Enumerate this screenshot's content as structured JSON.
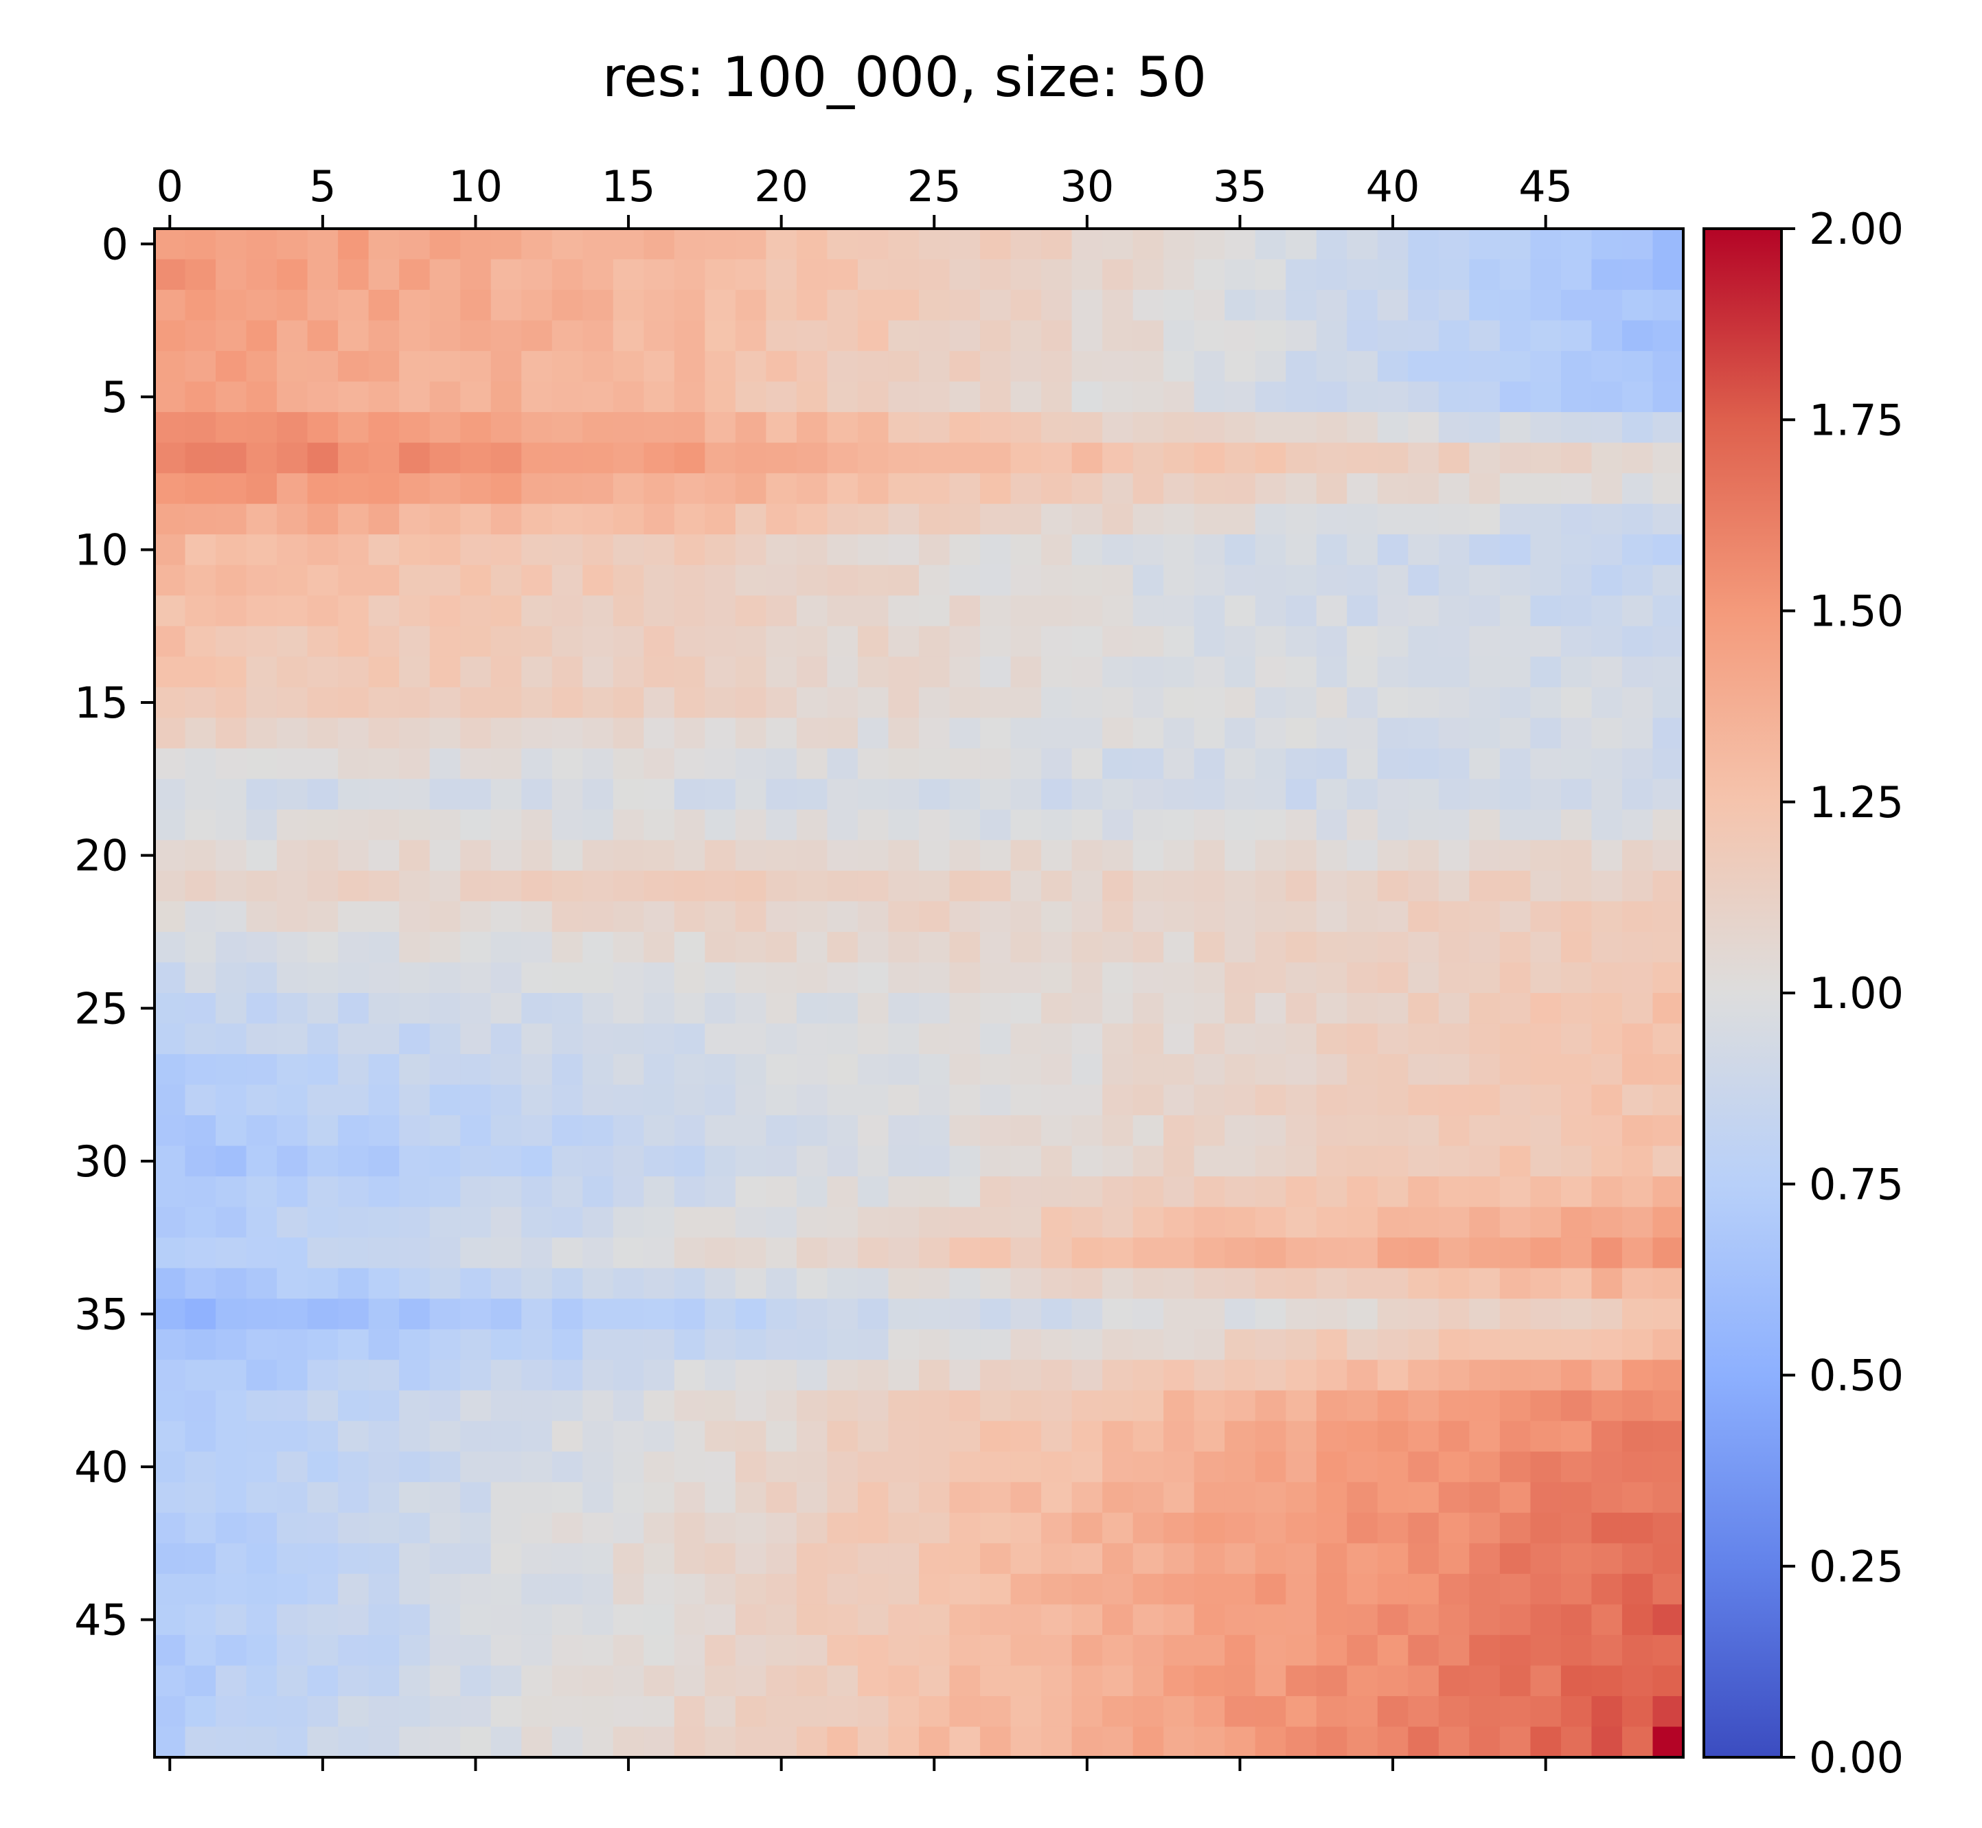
{
  "chart_data": {
    "type": "heatmap",
    "title": "res: 100_000, size: 50",
    "xlabel": "",
    "ylabel": "",
    "size": 50,
    "x_ticks": [
      0,
      5,
      10,
      15,
      20,
      25,
      30,
      35,
      40,
      45
    ],
    "y_ticks": [
      0,
      5,
      10,
      15,
      20,
      25,
      30,
      35,
      40,
      45
    ],
    "x_axis_position": "top",
    "grid": false,
    "colormap": "coolwarm",
    "vmin": 0,
    "vmax": 2,
    "colorbar": {
      "ticks": [
        "0.00",
        "0.25",
        "0.50",
        "0.75",
        "1.00",
        "1.25",
        "1.50",
        "1.75",
        "2.00"
      ],
      "placement": "right"
    },
    "row_profile": [
      1.5,
      1.48,
      1.46,
      1.45,
      1.44,
      1.42,
      1.42,
      1.52,
      1.56,
      1.3,
      1.28,
      1.26,
      1.24,
      1.22,
      1.2,
      1.17,
      1.15,
      1.12,
      0.92,
      0.92,
      0.95,
      1.05,
      1.05,
      0.95,
      0.92,
      0.85,
      0.82,
      0.8,
      0.78,
      0.76,
      0.7,
      0.72,
      0.72,
      0.7,
      0.68,
      0.6,
      0.6,
      0.65,
      0.7,
      0.72,
      0.74,
      0.72,
      0.72,
      0.7,
      0.68,
      0.68,
      0.68,
      0.7,
      0.72,
      0.7
    ],
    "col_profile": [
      1.0,
      1.0,
      1.0,
      1.0,
      1.0,
      1.0,
      1.0,
      1.0,
      1.0,
      1.0,
      1.0,
      1.0,
      1.0,
      1.0,
      1.0,
      1.0,
      1.0,
      1.0,
      1.0,
      1.0,
      1.0,
      1.0,
      1.0,
      1.0,
      1.0,
      1.0,
      1.0,
      1.0,
      1.0,
      1.0,
      1.0,
      1.0,
      1.0,
      1.0,
      1.0,
      1.0,
      1.0,
      1.0,
      1.0,
      1.0,
      1.0,
      1.0,
      1.0,
      1.0,
      1.0,
      1.0,
      1.0,
      1.0,
      1.0,
      1.0
    ],
    "corner_rows": [
      [
        0,
        1.52,
        1.32,
        1.05,
        0.62
      ],
      [
        5,
        1.45,
        1.3,
        1.0,
        0.65
      ],
      [
        7,
        1.62,
        1.48,
        1.22,
        1.05
      ],
      [
        10,
        1.32,
        1.18,
        0.95,
        0.82
      ],
      [
        15,
        1.2,
        1.12,
        1.0,
        0.92
      ],
      [
        18,
        0.92,
        0.95,
        0.9,
        0.9
      ],
      [
        21,
        1.08,
        1.15,
        1.1,
        1.15
      ],
      [
        25,
        0.82,
        0.95,
        1.05,
        1.25
      ],
      [
        30,
        0.65,
        0.85,
        1.1,
        1.25
      ],
      [
        33,
        0.75,
        1.0,
        1.3,
        1.5
      ],
      [
        35,
        0.55,
        0.78,
        0.98,
        1.2
      ],
      [
        38,
        0.72,
        1.0,
        1.3,
        1.6
      ],
      [
        42,
        0.72,
        1.05,
        1.4,
        1.7
      ],
      [
        46,
        0.7,
        1.05,
        1.42,
        1.75
      ],
      [
        49,
        0.75,
        1.1,
        1.45,
        1.78
      ]
    ]
  }
}
